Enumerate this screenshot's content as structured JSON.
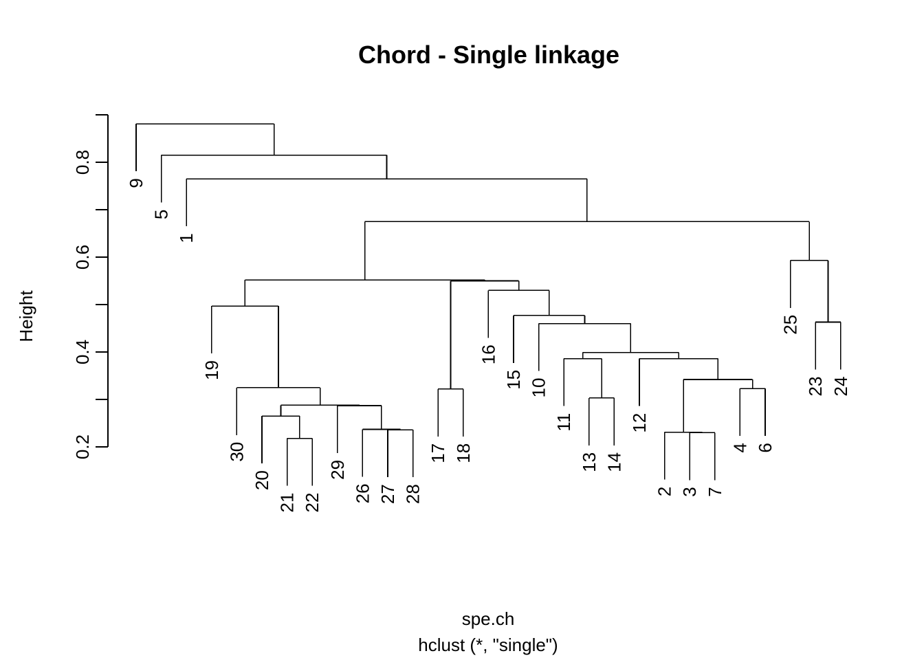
{
  "chart_data": {
    "type": "dendrogram",
    "title": "Chord - Single linkage",
    "xlabel": "spe.ch",
    "sublabel": "hclust (*, \"single\")",
    "ylabel": "Height",
    "ylim": [
      0.2,
      0.9
    ],
    "yticks": [
      {
        "value": 0.2,
        "label": "0.2"
      },
      {
        "value": 0.3,
        "label": ""
      },
      {
        "value": 0.4,
        "label": "0.4"
      },
      {
        "value": 0.5,
        "label": ""
      },
      {
        "value": 0.6,
        "label": "0.6"
      },
      {
        "value": 0.7,
        "label": ""
      },
      {
        "value": 0.8,
        "label": "0.8"
      },
      {
        "value": 0.9,
        "label": ""
      }
    ],
    "leaf_order": [
      "9",
      "5",
      "1",
      "19",
      "30",
      "20",
      "21",
      "22",
      "29",
      "26",
      "27",
      "28",
      "17",
      "18",
      "16",
      "15",
      "10",
      "11",
      "13",
      "14",
      "12",
      "2",
      "3",
      "7",
      "4",
      "6",
      "25",
      "23",
      "24"
    ],
    "merges": [
      {
        "id": "m1",
        "left": "21",
        "right": "22",
        "height": 0.218
      },
      {
        "id": "m2",
        "left": "3",
        "right": "7",
        "height": 0.23
      },
      {
        "id": "m3",
        "left": "2",
        "right": "m2",
        "height": 0.231
      },
      {
        "id": "m4",
        "left": "27",
        "right": "28",
        "height": 0.236
      },
      {
        "id": "m5",
        "left": "26",
        "right": "m4",
        "height": 0.237
      },
      {
        "id": "m6",
        "left": "20",
        "right": "m1",
        "height": 0.265
      },
      {
        "id": "m7",
        "left": "29",
        "right": "m5",
        "height": 0.287
      },
      {
        "id": "m8",
        "left": "m6",
        "right": "m7",
        "height": 0.288
      },
      {
        "id": "m9",
        "left": "13",
        "right": "14",
        "height": 0.303
      },
      {
        "id": "m10",
        "left": "17",
        "right": "18",
        "height": 0.322
      },
      {
        "id": "m11",
        "left": "4",
        "right": "6",
        "height": 0.323
      },
      {
        "id": "m12",
        "left": "30",
        "right": "m8",
        "height": 0.325
      },
      {
        "id": "m13",
        "left": "m3",
        "right": "m11",
        "height": 0.342
      },
      {
        "id": "m14",
        "left": "11",
        "right": "m9",
        "height": 0.386
      },
      {
        "id": "m15",
        "left": "12",
        "right": "m13",
        "height": 0.386
      },
      {
        "id": "m16",
        "left": "m14",
        "right": "m15",
        "height": 0.399
      },
      {
        "id": "m17",
        "left": "10",
        "right": "m16",
        "height": 0.46
      },
      {
        "id": "m18",
        "left": "23",
        "right": "24",
        "height": 0.463
      },
      {
        "id": "m19",
        "left": "15",
        "right": "m17",
        "height": 0.477
      },
      {
        "id": "m20",
        "left": "19",
        "right": "m12",
        "height": 0.497
      },
      {
        "id": "m21",
        "left": "16",
        "right": "m19",
        "height": 0.53
      },
      {
        "id": "m22",
        "left": "m10",
        "right": "m21",
        "height": 0.55
      },
      {
        "id": "m23",
        "left": "m20",
        "right": "m22",
        "height": 0.552
      },
      {
        "id": "m24",
        "left": "25",
        "right": "m18",
        "height": 0.593
      },
      {
        "id": "m25",
        "left": "m23",
        "right": "m24",
        "height": 0.675
      },
      {
        "id": "m26",
        "left": "1",
        "right": "m25",
        "height": 0.765
      },
      {
        "id": "m27",
        "left": "5",
        "right": "m26",
        "height": 0.815
      },
      {
        "id": "m28",
        "left": "9",
        "right": "m27",
        "height": 0.881
      }
    ],
    "hang": 0.1,
    "grid": false,
    "legend": "none"
  }
}
